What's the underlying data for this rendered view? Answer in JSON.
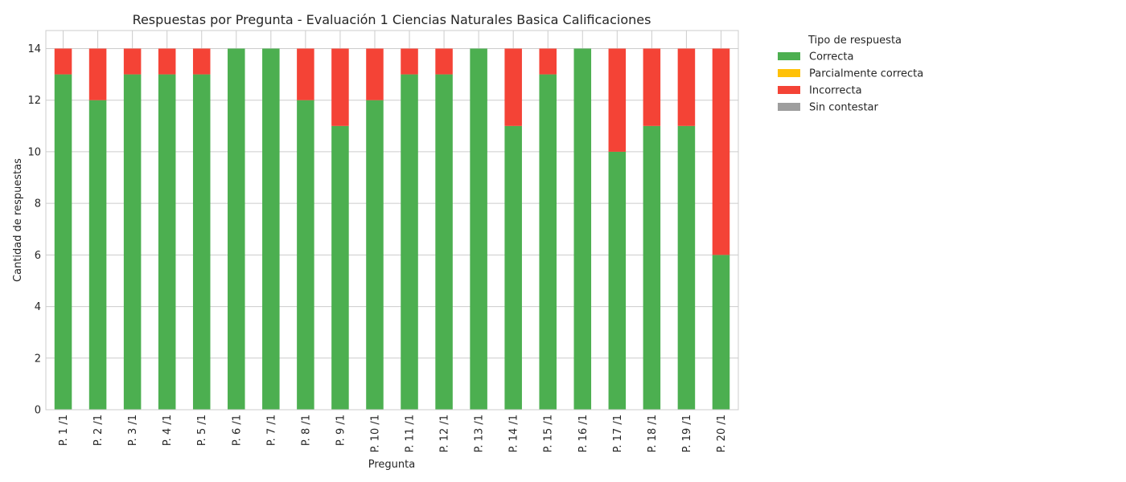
{
  "chart_data": {
    "type": "bar",
    "stacked": true,
    "title": "Respuestas por Pregunta - Evaluación 1 Ciencias Naturales Basica Calificaciones",
    "xlabel": "Pregunta",
    "ylabel": "Cantidad de respuestas",
    "ylim": [
      0,
      14.7
    ],
    "yticks": [
      0,
      2,
      4,
      6,
      8,
      10,
      12,
      14
    ],
    "grid": true,
    "legend": {
      "title": "Tipo de respuesta",
      "placement": "outside-top-right"
    },
    "categories": [
      "P. 1 /1",
      "P. 2 /1",
      "P. 3 /1",
      "P. 4 /1",
      "P. 5 /1",
      "P. 6 /1",
      "P. 7 /1",
      "P. 8 /1",
      "P. 9 /1",
      "P. 10 /1",
      "P. 11 /1",
      "P. 12 /1",
      "P. 13 /1",
      "P. 14 /1",
      "P. 15 /1",
      "P. 16 /1",
      "P. 17 /1",
      "P. 18 /1",
      "P. 19 /1",
      "P. 20 /1"
    ],
    "series": [
      {
        "name": "Correcta",
        "color": "#4caf50",
        "values": [
          13,
          12,
          13,
          13,
          13,
          14,
          14,
          12,
          11,
          12,
          13,
          13,
          14,
          11,
          13,
          14,
          10,
          11,
          11,
          6
        ]
      },
      {
        "name": "Parcialmente correcta",
        "color": "#ffc107",
        "values": [
          0,
          0,
          0,
          0,
          0,
          0,
          0,
          0,
          0,
          0,
          0,
          0,
          0,
          0,
          0,
          0,
          0,
          0,
          0,
          0
        ]
      },
      {
        "name": "Incorrecta",
        "color": "#f44336",
        "values": [
          1,
          2,
          1,
          1,
          1,
          0,
          0,
          2,
          3,
          2,
          1,
          1,
          0,
          3,
          1,
          0,
          4,
          3,
          3,
          8
        ]
      },
      {
        "name": "Sin contestar",
        "color": "#9e9e9e",
        "values": [
          0,
          0,
          0,
          0,
          0,
          0,
          0,
          0,
          0,
          0,
          0,
          0,
          0,
          0,
          0,
          0,
          0,
          0,
          0,
          0
        ]
      }
    ]
  }
}
